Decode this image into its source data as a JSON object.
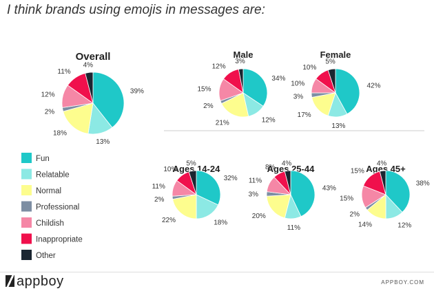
{
  "headline": "I think brands using emojis in messages are:",
  "chart_data": {
    "type": "pie",
    "categories": [
      "Fun",
      "Relatable",
      "Normal",
      "Professional",
      "Childish",
      "Inappropriate",
      "Other"
    ],
    "colors": [
      "#1fc8c8",
      "#8ce9e4",
      "#fdfd8e",
      "#7d8ea3",
      "#f587a6",
      "#f0104c",
      "#1b2631"
    ],
    "legend_placement": "left",
    "pies": [
      {
        "title": "Overall",
        "values": [
          39,
          13,
          18,
          2,
          12,
          11,
          4
        ]
      },
      {
        "title": "Male",
        "values": [
          34,
          12,
          21,
          2,
          15,
          12,
          3
        ]
      },
      {
        "title": "Female",
        "values": [
          42,
          13,
          17,
          3,
          10,
          10,
          5
        ]
      },
      {
        "title": "Ages 14-24",
        "values": [
          32,
          18,
          22,
          2,
          11,
          10,
          5
        ]
      },
      {
        "title": "Ages 25-44",
        "values": [
          43,
          11,
          20,
          3,
          11,
          8,
          4
        ]
      },
      {
        "title": "Ages 45+",
        "values": [
          38,
          12,
          14,
          2,
          15,
          15,
          4
        ]
      }
    ]
  },
  "footer": {
    "brand": "appboy",
    "brand_icon": "appboy-slash-logo",
    "url": "APPBOY.COM"
  }
}
